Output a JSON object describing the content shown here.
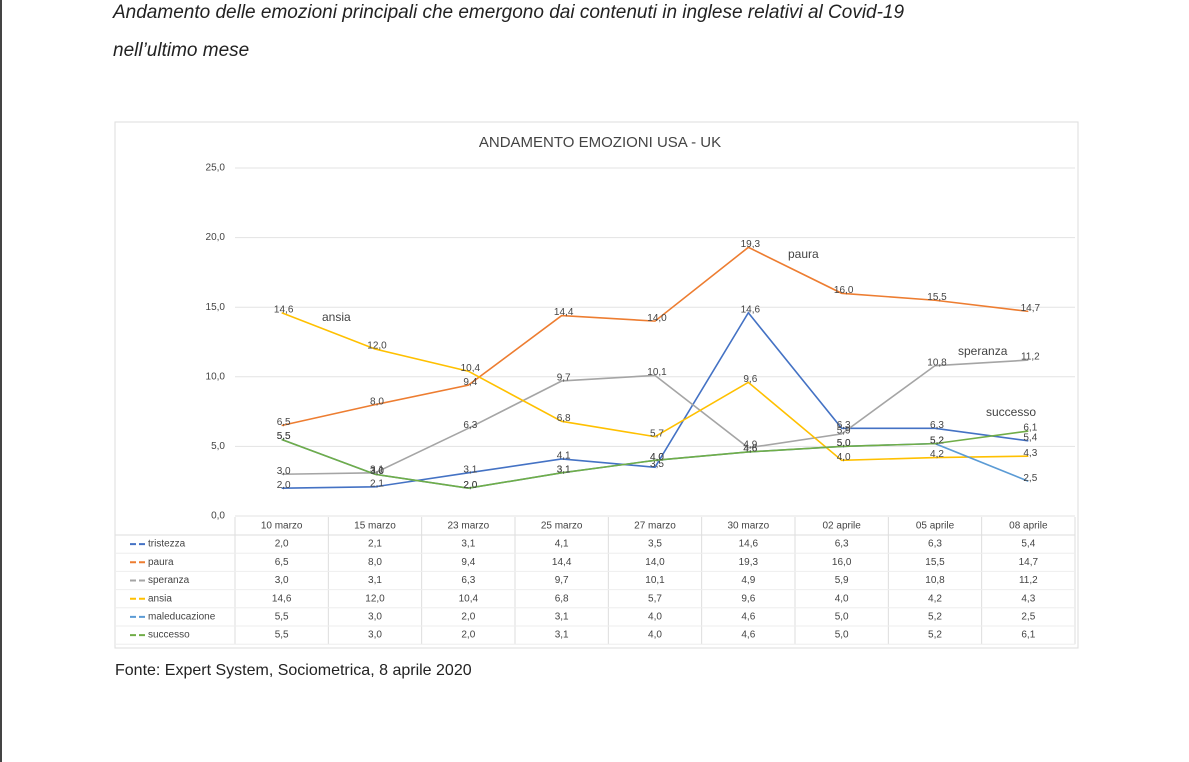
{
  "document": {
    "title_lines": [
      "Andamento delle emozioni principali che emergono dai contenuti in inglese relativi al Covid-19",
      "nell’ultimo mese"
    ],
    "source": "Fonte: Expert System, Sociometrica,  8 aprile 2020"
  },
  "chart_data": {
    "type": "line",
    "title": "ANDAMENTO EMOZIONI USA - UK",
    "categories": [
      "10 marzo",
      "15 marzo",
      "23 marzo",
      "25 marzo",
      "27 marzo",
      "30 marzo",
      "02 aprile",
      "05 aprile",
      "08 aprile"
    ],
    "ylim": [
      0,
      25
    ],
    "yticks": [
      {
        "value": 0,
        "label": "0,0"
      },
      {
        "value": 5,
        "label": "5,0"
      },
      {
        "value": 10,
        "label": "10,0"
      },
      {
        "value": 15,
        "label": "15,0"
      },
      {
        "value": 20,
        "label": "20,0"
      },
      {
        "value": 25,
        "label": "25,0"
      }
    ],
    "grid": true,
    "series": [
      {
        "name": "tristezza",
        "color": "#4472c4",
        "values": [
          2.0,
          2.1,
          3.1,
          4.1,
          3.5,
          14.6,
          6.3,
          6.3,
          5.4
        ],
        "value_labels": [
          "2,0",
          "2,1",
          "3,1",
          "4,1",
          "3,5",
          "14,6",
          "6,3",
          "6,3",
          "5,4"
        ]
      },
      {
        "name": "paura",
        "color": "#ed7d31",
        "values": [
          6.5,
          8.0,
          9.4,
          14.4,
          14.0,
          19.3,
          16.0,
          15.5,
          14.7
        ],
        "value_labels": [
          "6,5",
          "8,0",
          "9,4",
          "14,4",
          "14,0",
          "19,3",
          "16,0",
          "15,5",
          "14,7"
        ]
      },
      {
        "name": "speranza",
        "color": "#a5a5a5",
        "values": [
          3.0,
          3.1,
          6.3,
          9.7,
          10.1,
          4.9,
          5.9,
          10.8,
          11.2
        ],
        "value_labels": [
          "3,0",
          "3,1",
          "6,3",
          "9,7",
          "10,1",
          "4,9",
          "5,9",
          "10,8",
          "11,2"
        ]
      },
      {
        "name": "ansia",
        "color": "#ffc000",
        "values": [
          14.6,
          12.0,
          10.4,
          6.8,
          5.7,
          9.6,
          4.0,
          4.2,
          4.3
        ],
        "value_labels": [
          "14,6",
          "12,0",
          "10,4",
          "6,8",
          "5,7",
          "9,6",
          "4,0",
          "4,2",
          "4,3"
        ]
      },
      {
        "name": "maleducazione",
        "color": "#5b9bd5",
        "values": [
          5.5,
          3.0,
          2.0,
          3.1,
          4.0,
          4.6,
          5.0,
          5.2,
          2.5
        ],
        "value_labels": [
          "5,5",
          "3,0",
          "2,0",
          "3,1",
          "4,0",
          "4,6",
          "5,0",
          "5,2",
          "2,5"
        ]
      },
      {
        "name": "successo",
        "color": "#70ad47",
        "values": [
          5.5,
          3.0,
          2.0,
          3.1,
          4.0,
          4.6,
          5.0,
          5.2,
          6.1
        ],
        "value_labels": [
          "5,5",
          "3,0",
          "2,0",
          "3,1",
          "4,0",
          "4,6",
          "5,0",
          "5,2",
          "6,1"
        ]
      }
    ],
    "annotations": [
      "ansia",
      "paura",
      "speranza",
      "successo"
    ]
  }
}
